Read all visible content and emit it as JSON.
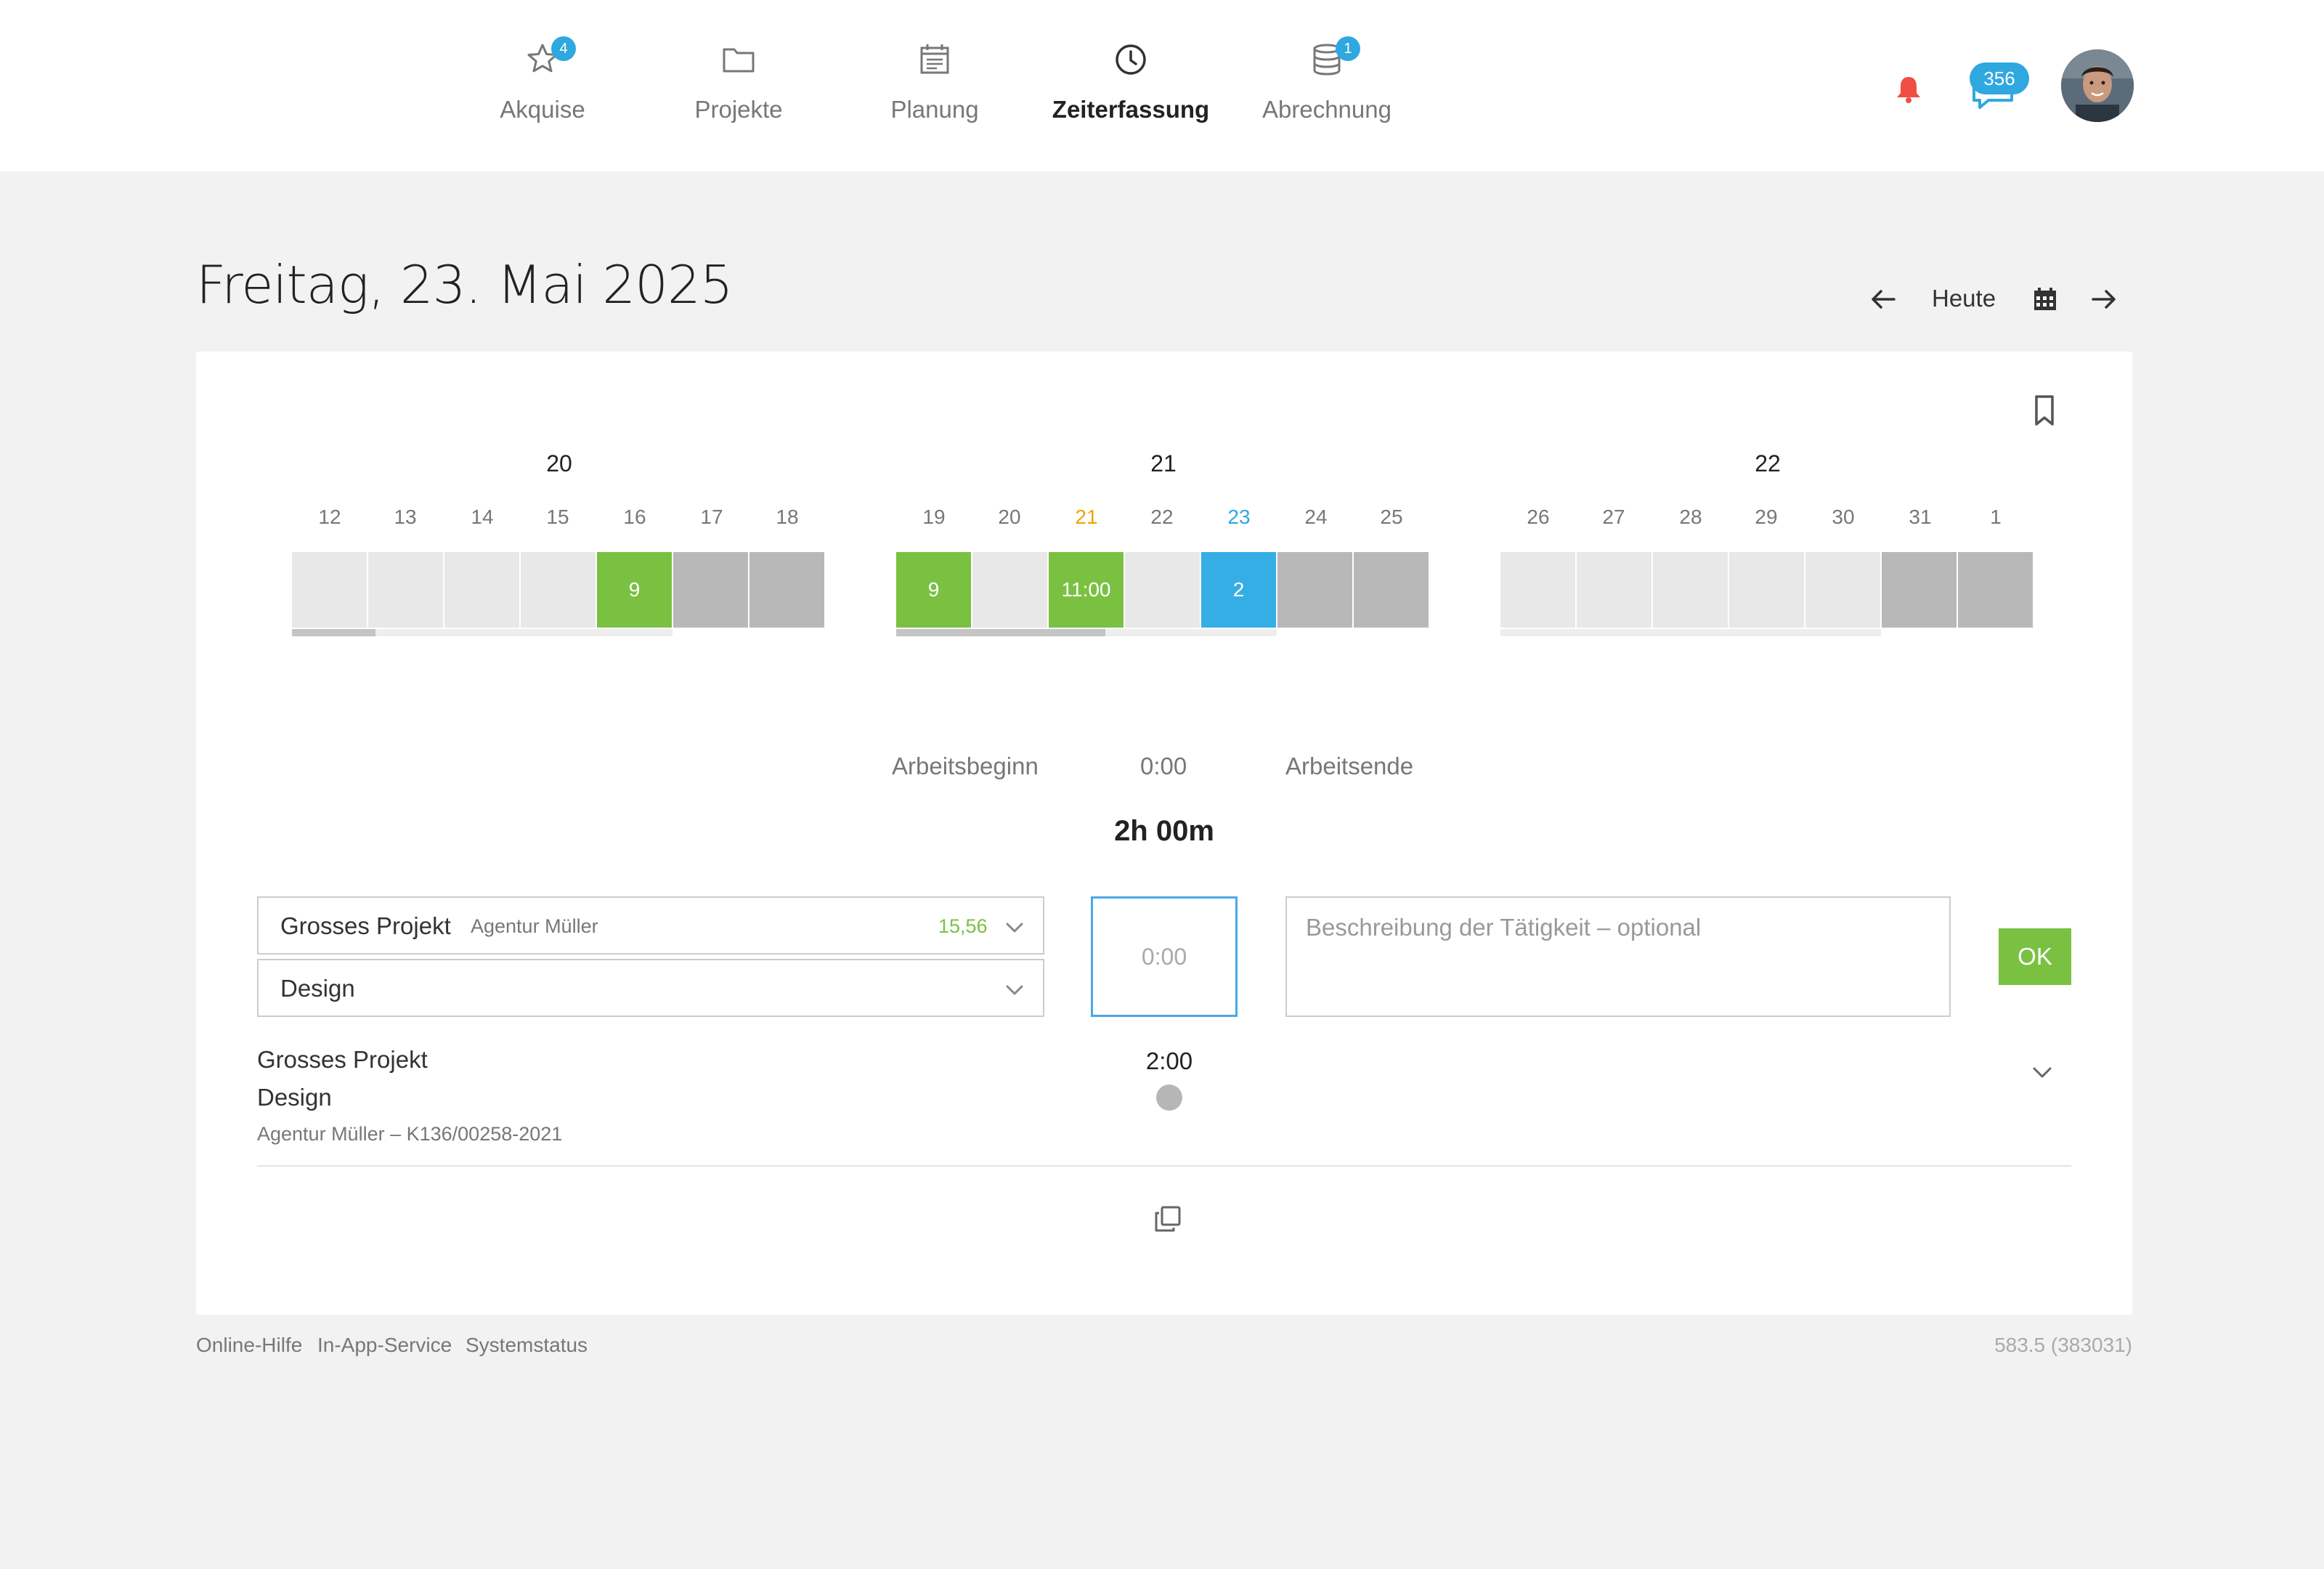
{
  "nav": {
    "items": [
      {
        "label": "Akquise",
        "icon": "star-icon",
        "badge": "4"
      },
      {
        "label": "Projekte",
        "icon": "folder-icon",
        "badge": ""
      },
      {
        "label": "Planung",
        "icon": "calendar-list-icon",
        "badge": ""
      },
      {
        "label": "Zeiterfassung",
        "icon": "clock-icon",
        "badge": "",
        "active": true
      },
      {
        "label": "Abrechnung",
        "icon": "coins-icon",
        "badge": "1"
      }
    ],
    "messages_badge": "356"
  },
  "header": {
    "title": "Freitag, 23. Mai 2025",
    "today_label": "Heute"
  },
  "calendar": {
    "weeks": [
      {
        "week": "20",
        "days": [
          "12",
          "13",
          "14",
          "15",
          "16",
          "17",
          "18"
        ],
        "cells": [
          "",
          "",
          "",
          "",
          "9",
          "",
          ""
        ],
        "progress": 0.22
      },
      {
        "week": "21",
        "days": [
          "19",
          "20",
          "21",
          "22",
          "23",
          "24",
          "25"
        ],
        "cells": [
          "9",
          "",
          "11:00",
          "",
          "2",
          "",
          ""
        ],
        "progress": 0.55
      },
      {
        "week": "22",
        "days": [
          "26",
          "27",
          "28",
          "29",
          "30",
          "31",
          "1"
        ],
        "cells": [
          "",
          "",
          "",
          "",
          "",
          "",
          ""
        ],
        "progress": 0
      }
    ]
  },
  "workday": {
    "start_label": "Arbeitsbeginn",
    "break_value": "0:00",
    "end_label": "Arbeitsende",
    "total": "2h 00m"
  },
  "form": {
    "project": "Grosses Projekt",
    "client": "Agentur Müller",
    "budget": "15,56",
    "service": "Design",
    "duration_value": "0:00",
    "description_placeholder": "Beschreibung der Tätigkeit – optional",
    "ok_label": "OK"
  },
  "entries": [
    {
      "project": "Grosses Projekt",
      "service": "Design",
      "meta": "Agentur Müller – K136/00258-2021",
      "time": "2:00"
    }
  ],
  "footer": {
    "links": [
      "Online-Hilfe",
      "In-App-Service",
      "Systemstatus"
    ],
    "version": "583.5 (383031)"
  },
  "colors": {
    "accent_blue": "#2fa8e0",
    "accent_green": "#7ac142",
    "today_orange": "#f0a400",
    "bell_red": "#f04e45"
  }
}
